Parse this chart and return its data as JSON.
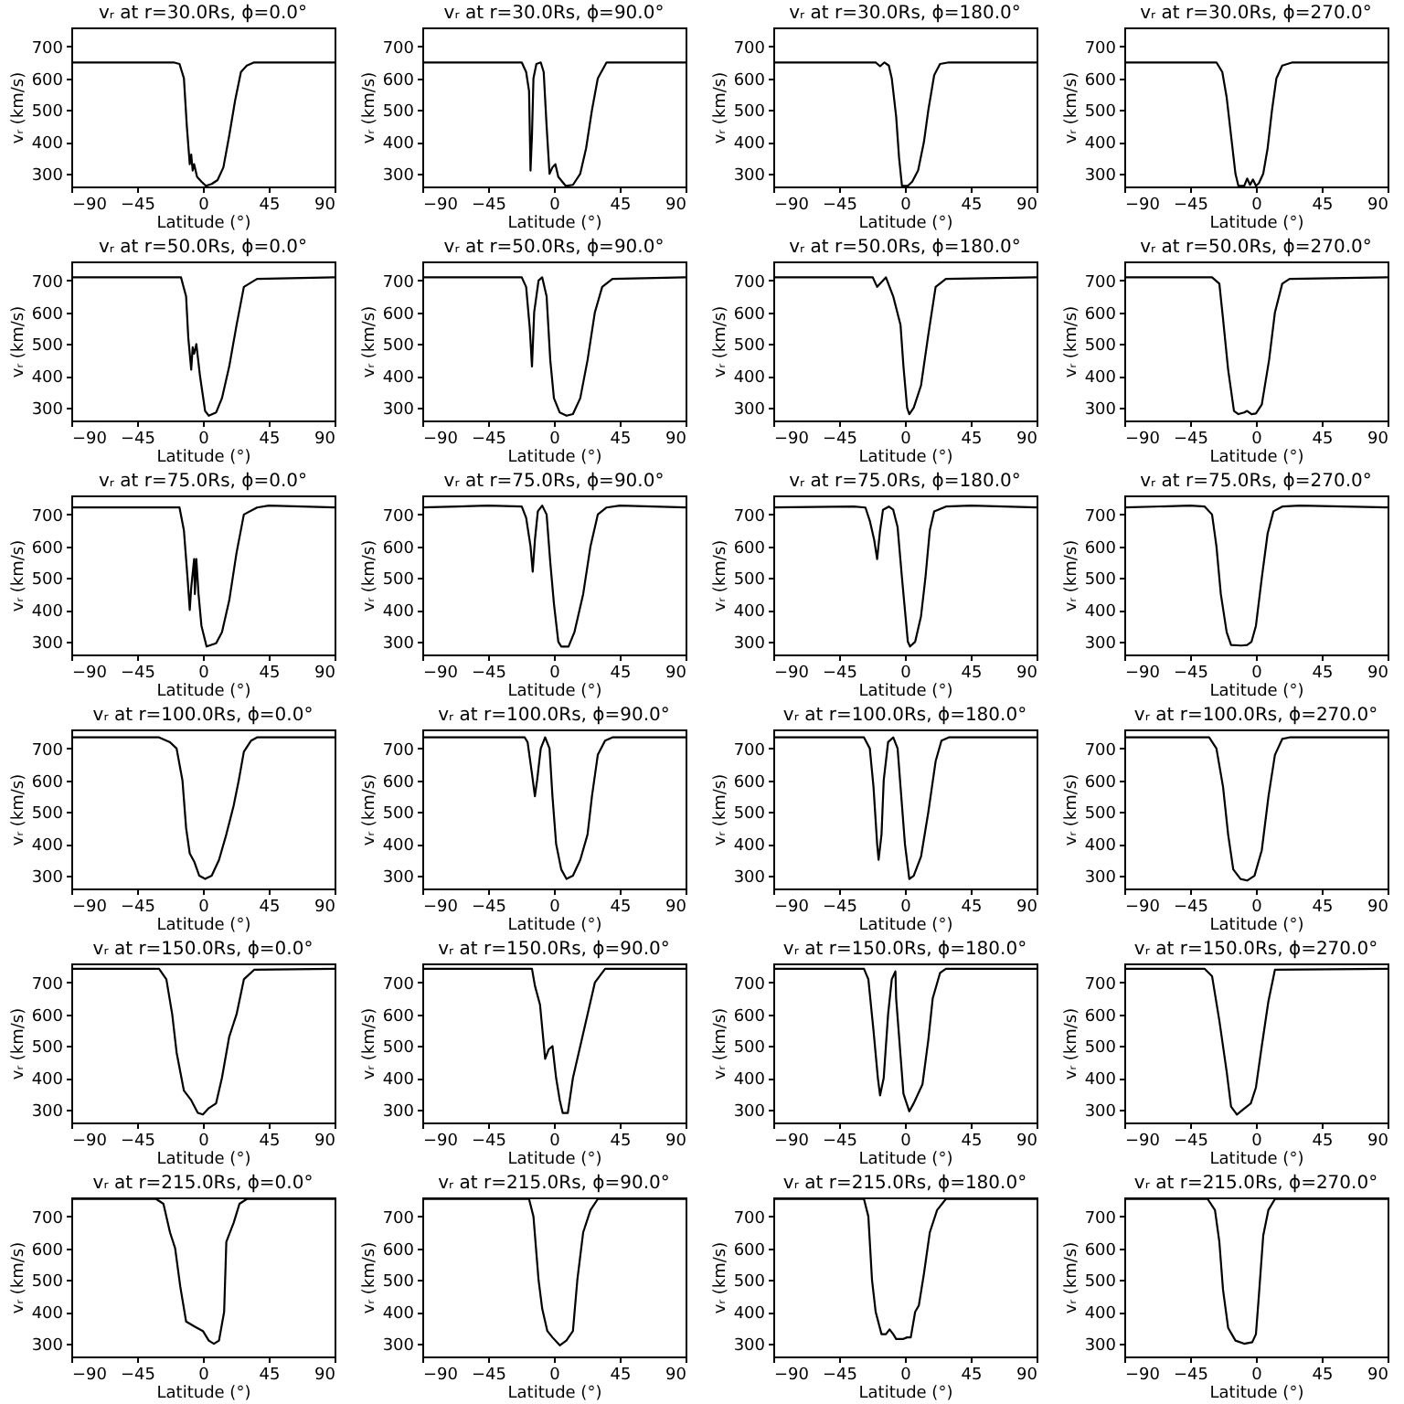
{
  "chart_data": [
    {
      "type": "line",
      "title": "vᵣ at r=30.0Rs, ϕ=0.0°",
      "xlabel": "Latitude (°)",
      "ylabel": "vᵣ (km/s)",
      "xlim": [
        -90,
        90
      ],
      "ylim": [
        260,
        760
      ],
      "xticks": [
        -90,
        -45,
        0,
        45,
        90
      ],
      "yticks": [
        300,
        400,
        500,
        600,
        700
      ],
      "color": "#000000",
      "x": [
        -90,
        -20,
        -16,
        -13,
        -11,
        -9,
        -8,
        -7,
        -6,
        -4,
        -1,
        2,
        6,
        10,
        14,
        18,
        22,
        26,
        30,
        35,
        90
      ],
      "values": [
        650,
        650,
        645,
        600,
        450,
        330,
        360,
        310,
        330,
        290,
        275,
        262,
        268,
        280,
        320,
        420,
        530,
        620,
        640,
        650,
        650
      ]
    },
    {
      "type": "line",
      "title": "vᵣ at r=30.0Rs, ϕ=90.0°",
      "xlabel": "Latitude (°)",
      "ylabel": "vᵣ (km/s)",
      "xlim": [
        -90,
        90
      ],
      "ylim": [
        260,
        760
      ],
      "xticks": [
        -90,
        -45,
        0,
        45,
        90
      ],
      "yticks": [
        300,
        400,
        500,
        600,
        700
      ],
      "color": "#000000",
      "x": [
        -90,
        -22,
        -19,
        -17,
        -16,
        -15,
        -14,
        -12,
        -9,
        -7,
        -5,
        -3,
        -1,
        1,
        3,
        8,
        13,
        18,
        22,
        26,
        30,
        36,
        90
      ],
      "values": [
        650,
        650,
        620,
        560,
        310,
        420,
        600,
        645,
        650,
        620,
        450,
        300,
        320,
        330,
        290,
        262,
        265,
        300,
        380,
        500,
        600,
        650,
        650
      ]
    },
    {
      "type": "line",
      "title": "vᵣ at r=30.0Rs, ϕ=180.0°",
      "xlabel": "Latitude (°)",
      "ylabel": "vᵣ (km/s)",
      "xlim": [
        -90,
        90
      ],
      "ylim": [
        260,
        760
      ],
      "xticks": [
        -90,
        -45,
        0,
        45,
        90
      ],
      "yticks": [
        300,
        400,
        500,
        600,
        700
      ],
      "color": "#000000",
      "x": [
        -90,
        -20,
        -17,
        -14,
        -11,
        -9,
        -6,
        -4,
        -2,
        2,
        5,
        9,
        13,
        16,
        20,
        24,
        30,
        90
      ],
      "values": [
        650,
        650,
        638,
        650,
        640,
        600,
        480,
        350,
        262,
        262,
        275,
        310,
        400,
        500,
        610,
        645,
        650,
        650
      ]
    },
    {
      "type": "line",
      "title": "vᵣ at r=30.0Rs, ϕ=270.0°",
      "xlabel": "Latitude (°)",
      "ylabel": "vᵣ (km/s)",
      "xlim": [
        -90,
        90
      ],
      "ylim": [
        260,
        760
      ],
      "xticks": [
        -90,
        -45,
        0,
        45,
        90
      ],
      "yticks": [
        300,
        400,
        500,
        600,
        700
      ],
      "color": "#000000",
      "x": [
        -90,
        -27,
        -23,
        -20,
        -17,
        -14,
        -12,
        -8,
        -6,
        -4,
        -2,
        0,
        2,
        5,
        8,
        11,
        14,
        18,
        25,
        90
      ],
      "values": [
        650,
        650,
        620,
        540,
        420,
        300,
        262,
        262,
        285,
        265,
        282,
        262,
        270,
        300,
        380,
        500,
        600,
        640,
        650,
        650
      ]
    },
    {
      "type": "line",
      "title": "vᵣ at r=50.0Rs, ϕ=0.0°",
      "xlabel": "Latitude (°)",
      "ylabel": "vᵣ (km/s)",
      "xlim": [
        -90,
        90
      ],
      "ylim": [
        260,
        760
      ],
      "xticks": [
        -90,
        -45,
        0,
        45,
        90
      ],
      "yticks": [
        300,
        400,
        500,
        600,
        700
      ],
      "color": "#000000",
      "x": [
        -90,
        -15,
        -11.5,
        -10,
        -8,
        -7,
        -6,
        -4.5,
        -2,
        1.5,
        4,
        9,
        13,
        18,
        23,
        28,
        37,
        90
      ],
      "values": [
        710,
        710,
        650,
        520,
        420,
        490,
        470,
        500,
        400,
        290,
        275,
        285,
        330,
        430,
        560,
        680,
        705,
        710
      ]
    },
    {
      "type": "line",
      "title": "vᵣ at r=50.0Rs, ϕ=90.0°",
      "xlabel": "Latitude (°)",
      "ylabel": "vᵣ (km/s)",
      "xlim": [
        -90,
        90
      ],
      "ylim": [
        260,
        760
      ],
      "xticks": [
        -90,
        -45,
        0,
        45,
        90
      ],
      "yticks": [
        300,
        400,
        500,
        600,
        700
      ],
      "color": "#000000",
      "x": [
        -90,
        -22,
        -19,
        -16.5,
        -15,
        -13.5,
        -10.5,
        -8,
        -5,
        -2.5,
        0,
        4,
        8.6,
        13,
        18,
        23,
        28,
        33,
        40,
        90
      ],
      "values": [
        710,
        710,
        680,
        550,
        430,
        600,
        700,
        710,
        650,
        450,
        330,
        285,
        275,
        280,
        330,
        450,
        600,
        680,
        705,
        710
      ]
    },
    {
      "type": "line",
      "title": "vᵣ at r=50.0Rs, ϕ=180.0°",
      "xlabel": "Latitude (°)",
      "ylabel": "vᵣ (km/s)",
      "xlim": [
        -90,
        90
      ],
      "ylim": [
        260,
        760
      ],
      "xticks": [
        -90,
        -45,
        0,
        45,
        90
      ],
      "yticks": [
        300,
        400,
        500,
        600,
        700
      ],
      "color": "#000000",
      "x": [
        -90,
        -22,
        -19,
        -13,
        -8,
        -3,
        -1,
        1.5,
        3,
        6,
        11,
        16,
        21,
        28,
        90
      ],
      "values": [
        710,
        710,
        680,
        710,
        650,
        560,
        430,
        300,
        280,
        300,
        370,
        530,
        680,
        705,
        710
      ]
    },
    {
      "type": "line",
      "title": "vᵣ at r=50.0Rs, ϕ=270.0°",
      "xlabel": "Latitude (°)",
      "ylabel": "vᵣ (km/s)",
      "xlim": [
        -90,
        90
      ],
      "ylim": [
        260,
        760
      ],
      "xticks": [
        -90,
        -45,
        0,
        45,
        90
      ],
      "yticks": [
        300,
        400,
        500,
        600,
        700
      ],
      "color": "#000000",
      "x": [
        -90,
        -30,
        -25,
        -22.5,
        -19,
        -15,
        -12,
        -8,
        -6,
        -3,
        0,
        4,
        9,
        13,
        18,
        23,
        90
      ],
      "values": [
        710,
        710,
        690,
        580,
        420,
        290,
        280,
        285,
        290,
        280,
        282,
        310,
        450,
        600,
        690,
        705,
        710
      ]
    },
    {
      "type": "line",
      "title": "vᵣ at r=75.0Rs, ϕ=0.0°",
      "xlabel": "Latitude (°)",
      "ylabel": "vᵣ (km/s)",
      "xlim": [
        -90,
        90
      ],
      "ylim": [
        260,
        760
      ],
      "xticks": [
        -90,
        -45,
        0,
        45,
        90
      ],
      "yticks": [
        300,
        400,
        500,
        600,
        700
      ],
      "color": "#000000",
      "x": [
        -90,
        -16,
        -13,
        -10.5,
        -9,
        -8,
        -6,
        -5.5,
        -4.5,
        -3,
        -1,
        2.5,
        9,
        13,
        18,
        23,
        28,
        37,
        45,
        90
      ],
      "values": [
        722,
        722,
        650,
        500,
        400,
        470,
        560,
        450,
        560,
        450,
        350,
        285,
        295,
        330,
        430,
        580,
        700,
        722,
        728,
        722
      ]
    },
    {
      "type": "line",
      "title": "vᵣ at r=75.0Rs, ϕ=90.0°",
      "xlabel": "Latitude (°)",
      "ylabel": "vᵣ (km/s)",
      "xlim": [
        -90,
        90
      ],
      "ylim": [
        260,
        760
      ],
      "xticks": [
        -90,
        -45,
        0,
        45,
        90
      ],
      "yticks": [
        300,
        400,
        500,
        600,
        700
      ],
      "color": "#000000",
      "x": [
        -90,
        -45,
        -22,
        -19,
        -16,
        -14.5,
        -13,
        -11,
        -8,
        -5,
        -2.5,
        0,
        3,
        5,
        10,
        14,
        20,
        25,
        30,
        36,
        45,
        90
      ],
      "values": [
        722,
        728,
        725,
        690,
        600,
        520,
        620,
        710,
        728,
        700,
        550,
        420,
        300,
        285,
        285,
        330,
        450,
        600,
        700,
        722,
        728,
        722
      ]
    },
    {
      "type": "line",
      "title": "vᵣ at r=75.0Rs, ϕ=180.0°",
      "xlabel": "Latitude (°)",
      "ylabel": "vᵣ (km/s)",
      "xlim": [
        -90,
        90
      ],
      "ylim": [
        260,
        760
      ],
      "xticks": [
        -90,
        -45,
        0,
        45,
        90
      ],
      "yticks": [
        300,
        400,
        500,
        600,
        700
      ],
      "color": "#000000",
      "x": [
        -90,
        -35,
        -27,
        -24,
        -21,
        -19,
        -17,
        -15,
        -11,
        -8,
        -5,
        -2,
        0,
        2,
        3.5,
        7,
        11,
        14,
        17,
        20,
        28,
        45,
        90
      ],
      "values": [
        722,
        725,
        722,
        680,
        620,
        560,
        650,
        715,
        725,
        715,
        660,
        500,
        400,
        300,
        285,
        300,
        380,
        500,
        650,
        710,
        725,
        728,
        722
      ]
    },
    {
      "type": "line",
      "title": "vᵣ at r=75.0Rs, ϕ=270.0°",
      "xlabel": "Latitude (°)",
      "ylabel": "vᵣ (km/s)",
      "xlim": [
        -90,
        90
      ],
      "ylim": [
        260,
        760
      ],
      "xticks": [
        -90,
        -45,
        0,
        45,
        90
      ],
      "yticks": [
        300,
        400,
        500,
        600,
        700
      ],
      "color": "#000000",
      "x": [
        -90,
        -45,
        -35,
        -30,
        -27,
        -24,
        -20,
        -17,
        -10,
        -6,
        -3,
        0,
        4,
        8,
        12,
        18,
        30,
        90
      ],
      "values": [
        722,
        728,
        725,
        700,
        600,
        450,
        330,
        290,
        288,
        290,
        300,
        350,
        500,
        640,
        710,
        725,
        728,
        722
      ]
    },
    {
      "type": "line",
      "title": "vᵣ at r=100.0Rs, ϕ=0.0°",
      "xlabel": "Latitude (°)",
      "ylabel": "vᵣ (km/s)",
      "xlim": [
        -90,
        90
      ],
      "ylim": [
        260,
        760
      ],
      "xticks": [
        -90,
        -45,
        0,
        45,
        90
      ],
      "yticks": [
        300,
        400,
        500,
        600,
        700
      ],
      "color": "#000000",
      "x": [
        -90,
        -30,
        -22.5,
        -18,
        -14,
        -11.5,
        -9,
        -6,
        -2.5,
        1.5,
        6,
        11,
        16,
        21,
        24.5,
        28,
        33,
        37,
        90
      ],
      "values": [
        735,
        735,
        720,
        700,
        600,
        450,
        370,
        345,
        300,
        290,
        300,
        350,
        430,
        520,
        600,
        690,
        725,
        735,
        735
      ]
    },
    {
      "type": "line",
      "title": "vᵣ at r=100.0Rs, ϕ=90.0°",
      "xlabel": "Latitude (°)",
      "ylabel": "vᵣ (km/s)",
      "xlim": [
        -90,
        90
      ],
      "ylim": [
        260,
        760
      ],
      "xticks": [
        -90,
        -45,
        0,
        45,
        90
      ],
      "yticks": [
        300,
        400,
        500,
        600,
        700
      ],
      "color": "#000000",
      "x": [
        -90,
        -20,
        -18,
        -15,
        -13,
        -11.5,
        -9,
        -6,
        -3,
        -1,
        1.5,
        5,
        8.6,
        13,
        18,
        23,
        26,
        30,
        35,
        40,
        90
      ],
      "values": [
        735,
        735,
        720,
        620,
        550,
        600,
        700,
        735,
        700,
        550,
        400,
        320,
        290,
        300,
        350,
        430,
        550,
        680,
        725,
        735,
        735
      ]
    },
    {
      "type": "line",
      "title": "vᵣ at r=100.0Rs, ϕ=180.0°",
      "xlabel": "Latitude (°)",
      "ylabel": "vᵣ (km/s)",
      "xlim": [
        -90,
        90
      ],
      "ylim": [
        260,
        760
      ],
      "xticks": [
        -90,
        -45,
        0,
        45,
        90
      ],
      "yticks": [
        300,
        400,
        500,
        600,
        700
      ],
      "color": "#000000",
      "x": [
        -90,
        -28,
        -24,
        -21.5,
        -19,
        -18,
        -16,
        -14.5,
        -11.5,
        -8,
        -5,
        -2.5,
        0,
        3,
        6,
        11,
        16,
        21,
        25,
        30,
        90
      ],
      "values": [
        735,
        735,
        700,
        580,
        400,
        350,
        430,
        600,
        720,
        735,
        700,
        550,
        400,
        290,
        300,
        360,
        500,
        660,
        725,
        735,
        735
      ]
    },
    {
      "type": "line",
      "title": "vᵣ at r=100.0Rs, ϕ=270.0°",
      "xlabel": "Latitude (°)",
      "ylabel": "vᵣ (km/s)",
      "xlim": [
        -90,
        90
      ],
      "ylim": [
        260,
        760
      ],
      "xticks": [
        -90,
        -45,
        0,
        45,
        90
      ],
      "yticks": [
        300,
        400,
        500,
        600,
        700
      ],
      "color": "#000000",
      "x": [
        -90,
        -32,
        -27,
        -22.5,
        -19,
        -15.5,
        -10.5,
        -6,
        -1,
        4,
        8.6,
        13,
        18,
        23,
        90
      ],
      "values": [
        735,
        735,
        700,
        580,
        430,
        320,
        290,
        285,
        300,
        380,
        550,
        680,
        730,
        735,
        735
      ]
    },
    {
      "type": "line",
      "title": "vᵣ at r=150.0Rs, ϕ=0.0°",
      "xlabel": "Latitude (°)",
      "ylabel": "vᵣ (km/s)",
      "xlim": [
        -90,
        90
      ],
      "ylim": [
        260,
        760
      ],
      "xticks": [
        -90,
        -45,
        0,
        45,
        90
      ],
      "yticks": [
        300,
        400,
        500,
        600,
        700
      ],
      "color": "#000000",
      "x": [
        -90,
        -30,
        -25,
        -21,
        -18,
        -13,
        -8,
        -3.5,
        0,
        4,
        9,
        13,
        18,
        23,
        28,
        35,
        90
      ],
      "values": [
        743,
        743,
        710,
        600,
        480,
        360,
        330,
        290,
        285,
        305,
        320,
        400,
        530,
        600,
        710,
        740,
        743
      ]
    },
    {
      "type": "line",
      "title": "vᵣ at r=150.0Rs, ϕ=90.0°",
      "xlabel": "Latitude (°)",
      "ylabel": "vᵣ (km/s)",
      "xlim": [
        -90,
        90
      ],
      "ylim": [
        260,
        760
      ],
      "xticks": [
        -90,
        -45,
        0,
        45,
        90
      ],
      "yticks": [
        300,
        400,
        500,
        600,
        700
      ],
      "color": "#000000",
      "x": [
        -90,
        -15,
        -13,
        -9.5,
        -6,
        -3.5,
        -1,
        1.5,
        4,
        6,
        9.5,
        13,
        18,
        23,
        28,
        35,
        90
      ],
      "values": [
        743,
        743,
        690,
        630,
        460,
        490,
        500,
        400,
        330,
        290,
        290,
        400,
        500,
        600,
        700,
        743,
        743
      ]
    },
    {
      "type": "line",
      "title": "vᵣ at r=150.0Rs, ϕ=180.0°",
      "xlabel": "Latitude (°)",
      "ylabel": "vᵣ (km/s)",
      "xlim": [
        -90,
        90
      ],
      "ylim": [
        260,
        760
      ],
      "xticks": [
        -90,
        -45,
        0,
        45,
        90
      ],
      "yticks": [
        300,
        400,
        500,
        600,
        700
      ],
      "color": "#000000",
      "x": [
        -90,
        -28,
        -25,
        -21.5,
        -18.5,
        -17,
        -14.5,
        -11.5,
        -9,
        -6.5,
        -6,
        -3.5,
        -1,
        3,
        6,
        12,
        16,
        19,
        24,
        28,
        90
      ],
      "values": [
        743,
        743,
        710,
        550,
        400,
        345,
        400,
        600,
        710,
        735,
        650,
        500,
        350,
        295,
        320,
        380,
        520,
        650,
        730,
        743,
        743
      ]
    },
    {
      "type": "line",
      "title": "vᵣ at r=150.0Rs, ϕ=270.0°",
      "xlabel": "Latitude (°)",
      "ylabel": "vᵣ (km/s)",
      "xlim": [
        -90,
        90
      ],
      "ylim": [
        260,
        760
      ],
      "xticks": [
        -90,
        -45,
        0,
        45,
        90
      ],
      "yticks": [
        300,
        400,
        500,
        600,
        700
      ],
      "color": "#000000",
      "x": [
        -90,
        -35,
        -30,
        -25,
        -20,
        -17,
        -13,
        -9,
        -3.5,
        0,
        4,
        8.5,
        13,
        90
      ],
      "values": [
        743,
        743,
        720,
        580,
        420,
        310,
        285,
        300,
        320,
        370,
        500,
        640,
        740,
        743
      ]
    },
    {
      "type": "line",
      "title": "vᵣ at r=215.0Rs, ϕ=0.0°",
      "xlabel": "Latitude (°)",
      "ylabel": "vᵣ (km/s)",
      "xlim": [
        -90,
        90
      ],
      "ylim": [
        260,
        760
      ],
      "xticks": [
        -90,
        -45,
        0,
        45,
        90
      ],
      "yticks": [
        300,
        400,
        500,
        600,
        700
      ],
      "color": "#000000",
      "x": [
        -90,
        -32,
        -27,
        -22.5,
        -19,
        -15.5,
        -11.5,
        -6,
        0,
        4,
        7.5,
        11,
        14.5,
        16,
        21,
        25,
        30,
        90
      ],
      "values": [
        755,
        755,
        740,
        650,
        600,
        480,
        370,
        355,
        340,
        310,
        300,
        310,
        400,
        620,
        680,
        740,
        755,
        755
      ]
    },
    {
      "type": "line",
      "title": "vᵣ at r=215.0Rs, ϕ=90.0°",
      "xlabel": "Latitude (°)",
      "ylabel": "vᵣ (km/s)",
      "xlim": [
        -90,
        90
      ],
      "ylim": [
        260,
        760
      ],
      "xticks": [
        -90,
        -45,
        0,
        45,
        90
      ],
      "yticks": [
        300,
        400,
        500,
        600,
        700
      ],
      "color": "#000000",
      "x": [
        -90,
        -17,
        -14,
        -10.5,
        -8,
        -4.5,
        -1,
        4,
        8.5,
        13,
        16,
        20,
        25,
        30,
        90
      ],
      "values": [
        755,
        755,
        700,
        500,
        410,
        340,
        320,
        295,
        310,
        340,
        500,
        650,
        720,
        755,
        755
      ]
    },
    {
      "type": "line",
      "title": "vᵣ at r=215.0Rs, ϕ=180.0°",
      "xlabel": "Latitude (°)",
      "ylabel": "vᵣ (km/s)",
      "xlim": [
        -90,
        90
      ],
      "ylim": [
        260,
        760
      ],
      "xticks": [
        -90,
        -45,
        0,
        45,
        90
      ],
      "yticks": [
        300,
        400,
        500,
        600,
        700
      ],
      "color": "#000000",
      "x": [
        -90,
        -28,
        -25,
        -22.5,
        -20,
        -16,
        -13,
        -10.5,
        -8,
        -6,
        -1,
        1.5,
        4,
        7,
        9.5,
        13,
        17,
        22,
        28,
        90
      ],
      "values": [
        755,
        755,
        700,
        500,
        400,
        330,
        330,
        345,
        330,
        315,
        315,
        320,
        320,
        400,
        420,
        520,
        650,
        720,
        755,
        755
      ]
    },
    {
      "type": "line",
      "title": "vᵣ at r=215.0Rs, ϕ=270.0°",
      "xlabel": "Latitude (°)",
      "ylabel": "vᵣ (km/s)",
      "xlim": [
        -90,
        90
      ],
      "ylim": [
        260,
        760
      ],
      "xticks": [
        -90,
        -45,
        0,
        45,
        90
      ],
      "yticks": [
        300,
        400,
        500,
        600,
        700
      ],
      "color": "#000000",
      "x": [
        -90,
        -33,
        -28,
        -25,
        -22.5,
        -19,
        -14,
        -8,
        -2.5,
        0,
        2,
        5,
        8.5,
        13,
        90
      ],
      "values": [
        755,
        755,
        720,
        620,
        470,
        350,
        310,
        300,
        305,
        330,
        450,
        640,
        720,
        755,
        755
      ]
    }
  ]
}
